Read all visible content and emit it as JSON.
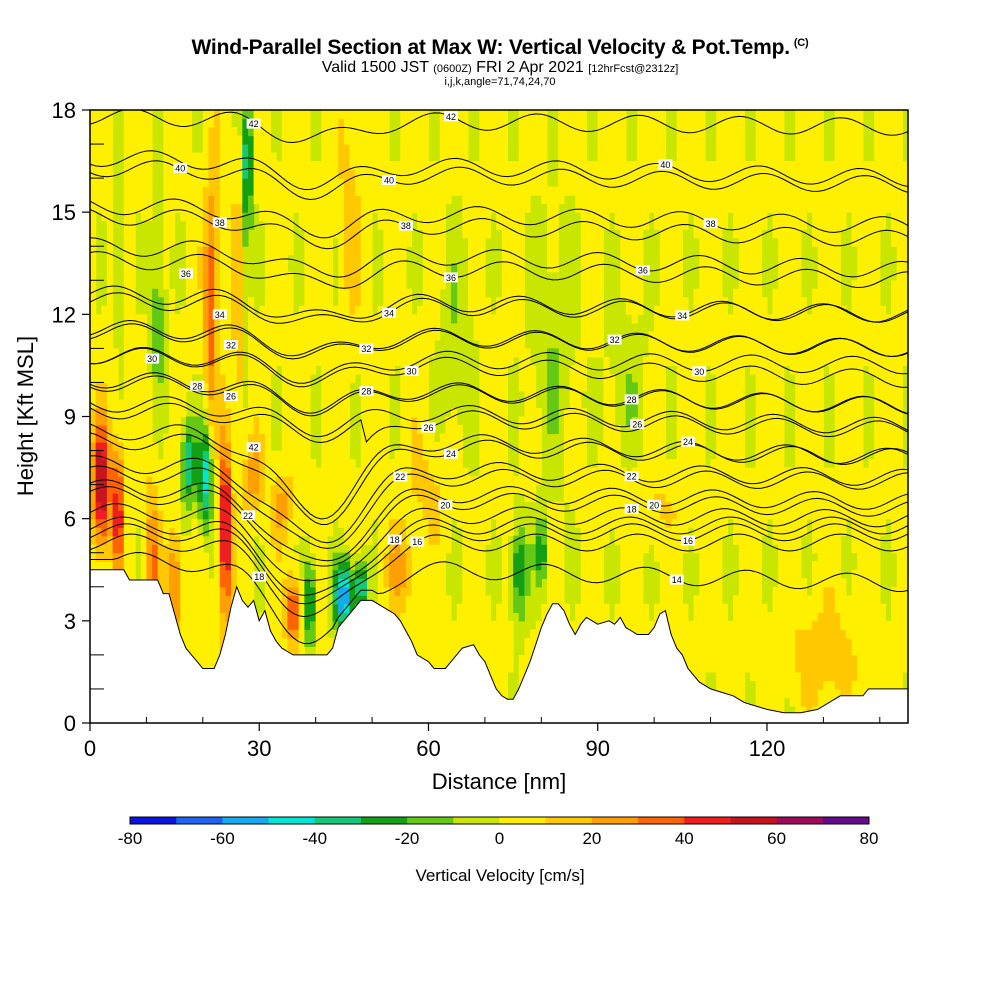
{
  "title": "Wind-Parallel Section at Max W: Vertical Velocity & Pot.Temp.",
  "copyright": "(C)",
  "subtitle_main": "Valid 1500 JST",
  "subtitle_utc": "(0600Z)",
  "subtitle_date": "FRI 2 Apr 2021",
  "subtitle_fcst": "[12hrFcst@2312z]",
  "params": "i,j,k,angle=71,74,24,70",
  "chart_data": {
    "type": "heatmap",
    "xlabel": "Distance [nm]",
    "ylabel": "Height [Kft MSL]",
    "xlim": [
      0,
      145
    ],
    "ylim": [
      0,
      18
    ],
    "x_ticks": [
      "0",
      "30",
      "60",
      "90",
      "120"
    ],
    "x_tick_values": [
      0,
      30,
      60,
      90,
      120
    ],
    "y_ticks": [
      "0",
      "3",
      "6",
      "9",
      "12",
      "15",
      "18"
    ],
    "y_tick_values": [
      0,
      3,
      6,
      9,
      12,
      15,
      18
    ],
    "colorbar": {
      "title": "Vertical Velocity [cm/s]",
      "min": -80,
      "max": 80,
      "labels": [
        "-80",
        "-60",
        "-40",
        "-20",
        "0",
        "20",
        "40",
        "60",
        "80"
      ],
      "colors": [
        "#0a14dc",
        "#1e64f0",
        "#14aaf0",
        "#00e6d2",
        "#14c878",
        "#14a014",
        "#64c814",
        "#c8e600",
        "#fff000",
        "#ffc800",
        "#ffa000",
        "#ff6400",
        "#f01e1e",
        "#c8141e",
        "#a00a5a",
        "#640a8c"
      ]
    },
    "terrain": [
      [
        0,
        4.5
      ],
      [
        3,
        4.5
      ],
      [
        6,
        4.5
      ],
      [
        7,
        4.2
      ],
      [
        12,
        4.2
      ],
      [
        13,
        3.8
      ],
      [
        14,
        3.8
      ],
      [
        15,
        3.2
      ],
      [
        16,
        2.6
      ],
      [
        17,
        2.2
      ],
      [
        18,
        2.0
      ],
      [
        19,
        1.8
      ],
      [
        20,
        1.6
      ],
      [
        22,
        1.6
      ],
      [
        23,
        2.0
      ],
      [
        24,
        2.6
      ],
      [
        25,
        3.4
      ],
      [
        26,
        4.0
      ],
      [
        27,
        3.6
      ],
      [
        28,
        3.4
      ],
      [
        29,
        3.6
      ],
      [
        30,
        3.0
      ],
      [
        31,
        3.3
      ],
      [
        32,
        2.7
      ],
      [
        33,
        2.4
      ],
      [
        34,
        2.2
      ],
      [
        35,
        2.1
      ],
      [
        36,
        2.0
      ],
      [
        40,
        2.0
      ],
      [
        42,
        2.0
      ],
      [
        43,
        2.2
      ],
      [
        44,
        2.8
      ],
      [
        46,
        3.2
      ],
      [
        48,
        3.6
      ],
      [
        50,
        3.6
      ],
      [
        52,
        3.4
      ],
      [
        54,
        3.2
      ],
      [
        55,
        3.0
      ],
      [
        57,
        2.4
      ],
      [
        58,
        2.0
      ],
      [
        60,
        1.8
      ],
      [
        61,
        1.6
      ],
      [
        63,
        1.6
      ],
      [
        64,
        1.8
      ],
      [
        66,
        2.2
      ],
      [
        68,
        2.3
      ],
      [
        69,
        2.0
      ],
      [
        70,
        1.8
      ],
      [
        71,
        1.4
      ],
      [
        72,
        1.0
      ],
      [
        73,
        0.8
      ],
      [
        74,
        0.7
      ],
      [
        75,
        0.7
      ],
      [
        76,
        1.0
      ],
      [
        77,
        1.4
      ],
      [
        78,
        1.8
      ],
      [
        79,
        2.3
      ],
      [
        80,
        2.8
      ],
      [
        81,
        3.2
      ],
      [
        82,
        3.5
      ],
      [
        83,
        3.5
      ],
      [
        84,
        3.3
      ],
      [
        85,
        2.9
      ],
      [
        86,
        2.6
      ],
      [
        87,
        2.9
      ],
      [
        88,
        3.1
      ],
      [
        89,
        3.0
      ],
      [
        90,
        2.9
      ],
      [
        92,
        3.0
      ],
      [
        93,
        2.9
      ],
      [
        94,
        3.1
      ],
      [
        95,
        2.8
      ],
      [
        96,
        2.7
      ],
      [
        97,
        2.6
      ],
      [
        99,
        2.6
      ],
      [
        100,
        2.8
      ],
      [
        101,
        3.2
      ],
      [
        102,
        3.3
      ],
      [
        103,
        2.6
      ],
      [
        104,
        2.2
      ],
      [
        105,
        2.0
      ],
      [
        106,
        1.6
      ],
      [
        107,
        1.4
      ],
      [
        108,
        1.2
      ],
      [
        110,
        1.0
      ],
      [
        112,
        0.9
      ],
      [
        114,
        0.8
      ],
      [
        116,
        0.6
      ],
      [
        118,
        0.5
      ],
      [
        120,
        0.4
      ],
      [
        123,
        0.3
      ],
      [
        126,
        0.3
      ],
      [
        129,
        0.4
      ],
      [
        131,
        0.6
      ],
      [
        133,
        0.8
      ],
      [
        135,
        0.8
      ],
      [
        137,
        0.8
      ],
      [
        138,
        1.0
      ],
      [
        141,
        1.0
      ],
      [
        143,
        1.0
      ],
      [
        145,
        1.0
      ]
    ],
    "isentropes": [
      {
        "value": 14,
        "h0": 4.8,
        "h1": 4.1,
        "label_x": 104
      },
      {
        "value": 16,
        "h0": 5.3,
        "h1": 5.3,
        "label_x": 58
      },
      {
        "value": 16,
        "h0": 5.6,
        "h1": 5.6,
        "label_x": 106
      },
      {
        "value": 18,
        "h0": 5.8,
        "h1": 5.8,
        "label_x": 54
      },
      {
        "value": 18,
        "h0": 6.2,
        "h1": 6.0,
        "label_x": 96
      },
      {
        "value": 20,
        "h0": 6.7,
        "h1": 6.3,
        "label_x": 63
      },
      {
        "value": 20,
        "h0": 6.9,
        "h1": 6.5,
        "label_x": 100
      },
      {
        "value": 22,
        "h0": 7.3,
        "h1": 7.1,
        "label_x": 55
      },
      {
        "value": 22,
        "h0": 7.6,
        "h1": 7.2,
        "label_x": 96
      },
      {
        "value": 24,
        "h0": 8.3,
        "h1": 7.8,
        "label_x": 64
      },
      {
        "value": 24,
        "h0": 8.6,
        "h1": 7.8,
        "label_x": 106
      },
      {
        "value": 26,
        "h0": 9.2,
        "h1": 8.6,
        "label_x": 60
      },
      {
        "value": 26,
        "h0": 9.4,
        "h1": 8.7,
        "label_x": 97
      },
      {
        "value": 28,
        "h0": 10.0,
        "h1": 9.3,
        "label_x": 49
      },
      {
        "value": 28,
        "h0": 10.1,
        "h1": 9.3,
        "label_x": 96
      },
      {
        "value": 30,
        "h0": 10.8,
        "h1": 10.1,
        "label_x": 57
      },
      {
        "value": 30,
        "h0": 10.8,
        "h1": 10.5,
        "label_x": 108
      },
      {
        "value": 32,
        "h0": 11.5,
        "h1": 11.0,
        "label_x": 49
      },
      {
        "value": 32,
        "h0": 11.6,
        "h1": 11.0,
        "label_x": 93
      },
      {
        "value": 34,
        "h0": 12.4,
        "h1": 12.0,
        "label_x": 53
      },
      {
        "value": 34,
        "h0": 12.6,
        "h1": 12.0,
        "label_x": 105
      },
      {
        "value": 36,
        "h0": 13.6,
        "h1": 13.0,
        "label_x": 64
      },
      {
        "value": 36,
        "h0": 14.0,
        "h1": 13.3,
        "label_x": 98
      },
      {
        "value": 38,
        "h0": 14.9,
        "h1": 14.2,
        "label_x": 56
      },
      {
        "value": 38,
        "h0": 15.2,
        "h1": 14.6,
        "label_x": 110
      },
      {
        "value": 40,
        "h0": 16.3,
        "h1": 15.8,
        "label_x": 53
      },
      {
        "value": 40,
        "h0": 16.6,
        "h1": 16.0,
        "label_x": 102
      },
      {
        "value": 42,
        "h0": 17.8,
        "h1": 17.5,
        "label_x": 64
      }
    ],
    "contour_labels": [
      {
        "value": "40",
        "x": 16,
        "y": 16.3
      },
      {
        "value": "38",
        "x": 23,
        "y": 14.7
      },
      {
        "value": "36",
        "x": 17,
        "y": 13.2
      },
      {
        "value": "34",
        "x": 23,
        "y": 12.0
      },
      {
        "value": "32",
        "x": 25,
        "y": 11.1
      },
      {
        "value": "30",
        "x": 11,
        "y": 10.7
      },
      {
        "value": "28",
        "x": 19,
        "y": 9.9
      },
      {
        "value": "26",
        "x": 25,
        "y": 9.6
      },
      {
        "value": "42",
        "x": 29,
        "y": 8.1
      },
      {
        "value": "22",
        "x": 28,
        "y": 6.1
      },
      {
        "value": "18",
        "x": 30,
        "y": 4.3
      },
      {
        "value": "42",
        "x": 29,
        "y": 17.6
      }
    ]
  }
}
